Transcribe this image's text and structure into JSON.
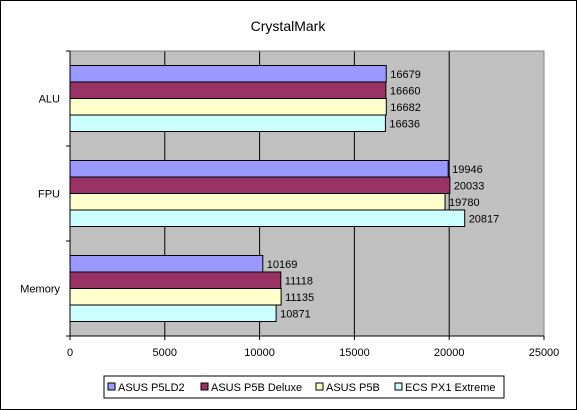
{
  "chart_data": {
    "type": "bar",
    "orientation": "horizontal",
    "title": "CrystalMark",
    "xlabel": "",
    "ylabel": "",
    "categories": [
      "ALU",
      "FPU",
      "Memory"
    ],
    "series": [
      {
        "name": "ASUS P5LD2",
        "color": "#9999ff",
        "values": [
          16679,
          19946,
          10169
        ]
      },
      {
        "name": "ASUS P5B Deluxe",
        "color": "#993366",
        "values": [
          16660,
          20033,
          11118
        ]
      },
      {
        "name": "ASUS P5B",
        "color": "#ffffcc",
        "values": [
          16682,
          19780,
          11135
        ]
      },
      {
        "name": "ECS PX1 Extreme",
        "color": "#ccffff",
        "values": [
          16636,
          20817,
          10871
        ]
      }
    ],
    "xlim": [
      0,
      25000
    ],
    "x_ticks": [
      "0",
      "5000",
      "10000",
      "15000",
      "20000",
      "25000"
    ],
    "grid": true,
    "plot_background": "#c0c0c0",
    "legend_position": "bottom",
    "data_labels": true
  }
}
